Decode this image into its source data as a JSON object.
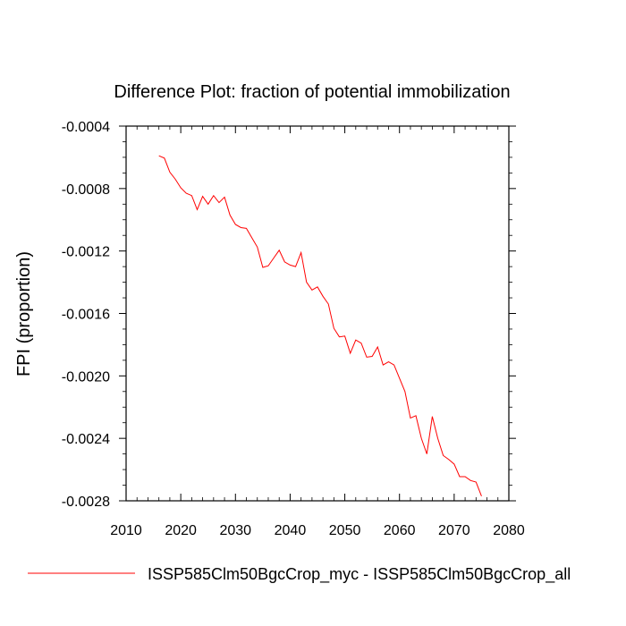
{
  "chart_data": {
    "type": "line",
    "title": "Difference Plot: fraction of potential immobilization",
    "xlabel": "",
    "ylabel": "FPI  (proportion)",
    "xlim": [
      2010,
      2080
    ],
    "ylim": [
      -0.0028,
      -0.0004
    ],
    "x_ticks": [
      2010,
      2020,
      2030,
      2040,
      2050,
      2060,
      2070,
      2080
    ],
    "y_ticks": [
      -0.0028,
      -0.0024,
      -0.002,
      -0.0016,
      -0.0012,
      -0.0008,
      -0.0004
    ],
    "x_tick_labels": [
      "2010",
      "2020",
      "2030",
      "2040",
      "2050",
      "2060",
      "2070",
      "2080"
    ],
    "y_tick_labels": [
      "-0.0028",
      "-0.0024",
      "-0.0020",
      "-0.0016",
      "-0.0012",
      "-0.0008",
      "-0.0004"
    ],
    "legend_position": "bottom",
    "grid": false,
    "series": [
      {
        "name": "ISSP585Clm50BgcCrop_myc - ISSP585Clm50BgcCrop_all",
        "color": "#ff0000",
        "x": [
          2016,
          2017,
          2018,
          2019,
          2020,
          2021,
          2022,
          2023,
          2024,
          2025,
          2026,
          2027,
          2028,
          2029,
          2030,
          2031,
          2032,
          2033,
          2034,
          2035,
          2036,
          2037,
          2038,
          2039,
          2040,
          2041,
          2042,
          2043,
          2044,
          2045,
          2046,
          2047,
          2048,
          2049,
          2050,
          2051,
          2052,
          2053,
          2054,
          2055,
          2056,
          2057,
          2058,
          2059,
          2060,
          2061,
          2062,
          2063,
          2064,
          2065,
          2066,
          2067,
          2068,
          2069,
          2070,
          2071,
          2072,
          2073,
          2074,
          2075
        ],
        "values": [
          -0.00059,
          -0.000605,
          -0.000695,
          -0.00074,
          -0.000795,
          -0.00083,
          -0.000845,
          -0.000935,
          -0.00085,
          -0.0009,
          -0.000845,
          -0.00089,
          -0.000855,
          -0.00097,
          -0.00103,
          -0.00105,
          -0.001055,
          -0.001115,
          -0.001175,
          -0.001305,
          -0.001295,
          -0.001245,
          -0.001195,
          -0.00127,
          -0.00129,
          -0.0013,
          -0.00121,
          -0.0014,
          -0.00145,
          -0.00143,
          -0.00149,
          -0.00154,
          -0.001695,
          -0.00175,
          -0.001745,
          -0.001855,
          -0.00177,
          -0.00179,
          -0.00188,
          -0.001875,
          -0.001815,
          -0.00193,
          -0.00191,
          -0.00193,
          -0.002015,
          -0.0021,
          -0.00227,
          -0.002255,
          -0.0024,
          -0.0025,
          -0.00226,
          -0.0024,
          -0.00251,
          -0.002535,
          -0.002565,
          -0.002645,
          -0.002645,
          -0.00267,
          -0.00268,
          -0.00277
        ]
      }
    ]
  }
}
